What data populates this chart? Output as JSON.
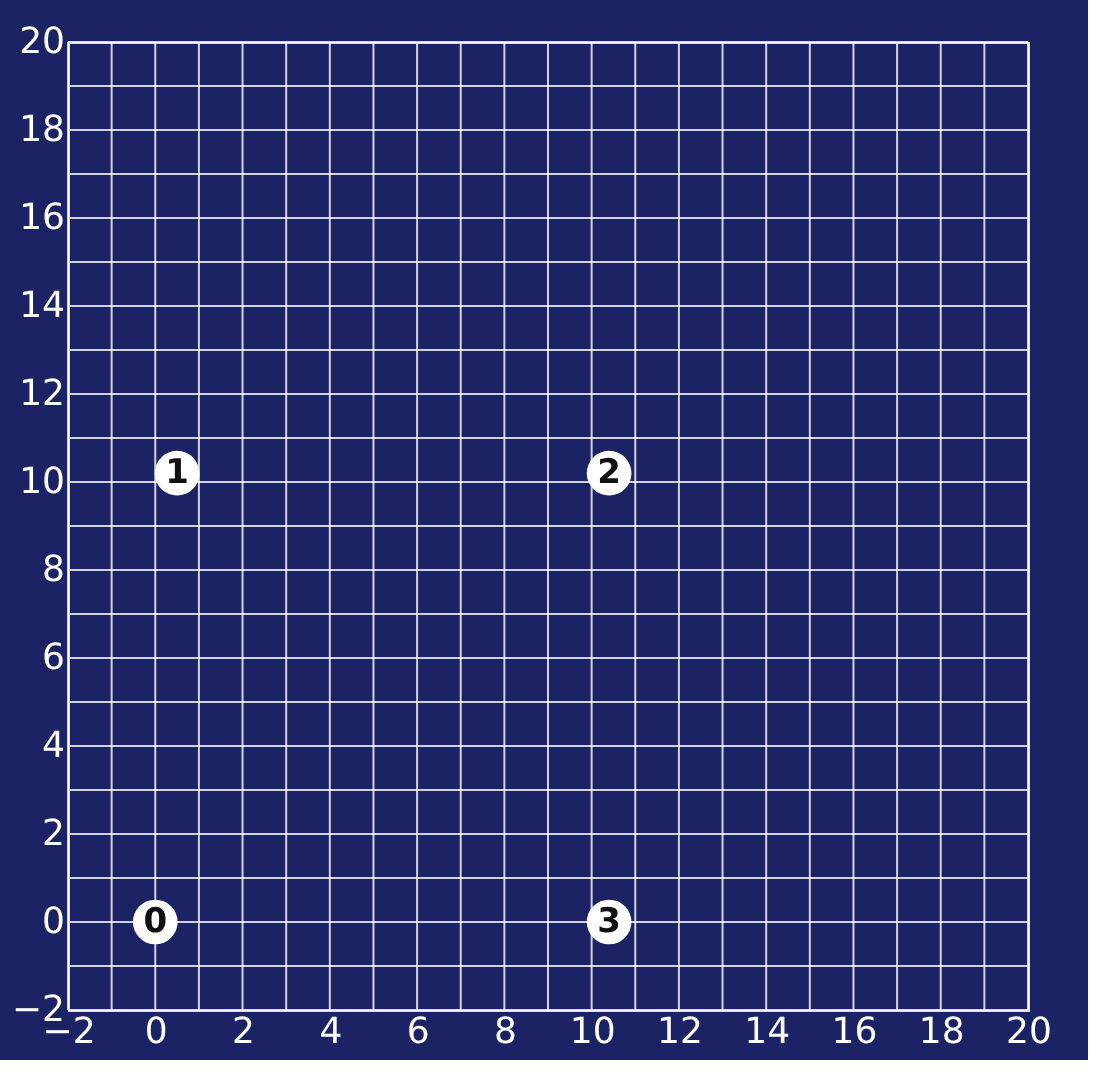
{
  "chart_data": {
    "type": "scatter",
    "x": [
      0,
      0.5,
      10.4,
      10.4
    ],
    "series": [
      {
        "color": "#ffffff",
        "values": [
          0,
          10.2,
          10.2,
          0
        ]
      }
    ],
    "annotations": [
      {
        "text": "0",
        "x": 0,
        "y": 0
      },
      {
        "text": "1",
        "x": 0.5,
        "y": 10.2
      },
      {
        "text": "2",
        "x": 10.4,
        "y": 10.2
      },
      {
        "text": "3",
        "x": 10.4,
        "y": 0
      }
    ],
    "xlim": [
      -2,
      20
    ],
    "ylim": [
      -2,
      20
    ],
    "xticks": [
      -2,
      0,
      2,
      4,
      6,
      8,
      10,
      12,
      14,
      16,
      18,
      20
    ],
    "yticks": [
      -2,
      0,
      2,
      4,
      6,
      8,
      10,
      12,
      14,
      16,
      18,
      20
    ],
    "grid": true,
    "marker": "circle"
  }
}
